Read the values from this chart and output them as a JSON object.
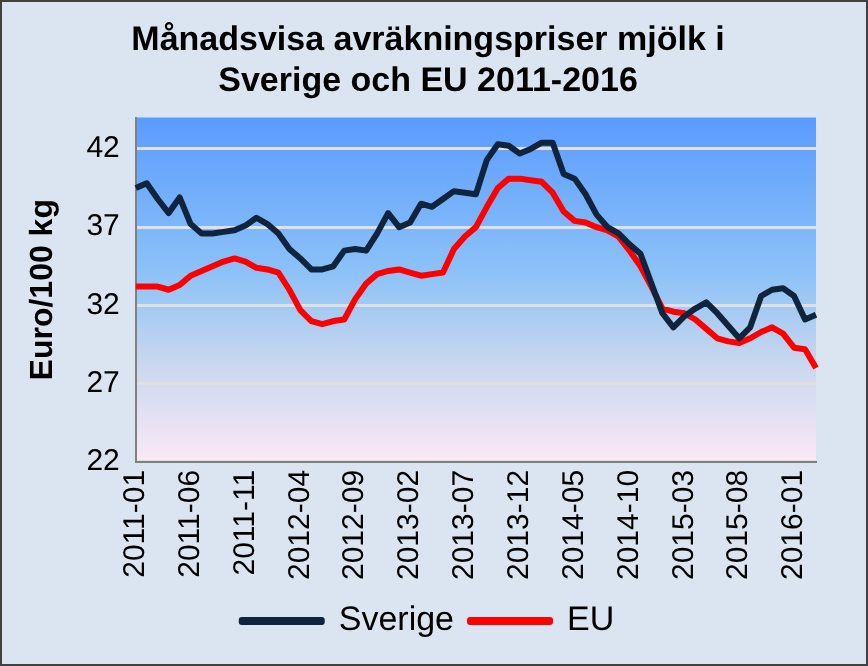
{
  "chart_data": {
    "type": "line",
    "title": "Månadsvisa avräkningspriser mjölk i Sverige och EU 2011-2016",
    "ylabel": "Euro/100 kg",
    "categories": [
      "2011-01",
      null,
      null,
      null,
      null,
      "2011-06",
      null,
      null,
      null,
      null,
      "2011-11",
      null,
      null,
      null,
      null,
      "2012-04",
      null,
      null,
      null,
      null,
      "2012-09",
      null,
      null,
      null,
      null,
      "2013-02",
      null,
      null,
      null,
      null,
      "2013-07",
      null,
      null,
      null,
      null,
      "2013-12",
      null,
      null,
      null,
      null,
      "2014-05",
      null,
      null,
      null,
      null,
      "2014-10",
      null,
      null,
      null,
      null,
      "2015-03",
      null,
      null,
      null,
      null,
      "2015-08",
      null,
      null,
      null,
      null,
      "2016-01",
      null,
      null
    ],
    "series": [
      {
        "name": "Sverige",
        "color": "#10243e",
        "values": [
          39.5,
          39.8,
          38.8,
          37.9,
          38.9,
          37.2,
          36.6,
          36.6,
          36.7,
          36.8,
          37.1,
          37.6,
          37.2,
          36.6,
          35.6,
          35.0,
          34.3,
          34.3,
          34.5,
          35.5,
          35.6,
          35.5,
          36.6,
          37.9,
          37.0,
          37.3,
          38.5,
          38.3,
          38.8,
          39.3,
          39.2,
          39.1,
          41.3,
          42.3,
          42.2,
          41.7,
          42.0,
          42.4,
          42.4,
          40.4,
          40.1,
          39.1,
          37.8,
          37.0,
          36.6,
          35.9,
          35.3,
          33.4,
          31.5,
          30.6,
          31.3,
          31.8,
          32.2,
          31.5,
          30.7,
          29.9,
          30.6,
          32.6,
          33.0,
          33.1,
          32.6,
          31.1,
          31.4
        ]
      },
      {
        "name": "EU",
        "color": "#ff0000",
        "values": [
          33.2,
          33.2,
          33.2,
          33.0,
          33.3,
          33.9,
          34.2,
          34.5,
          34.8,
          35.0,
          34.8,
          34.4,
          34.3,
          34.1,
          33.0,
          31.7,
          31.0,
          30.8,
          31.0,
          31.1,
          32.4,
          33.4,
          34.0,
          34.2,
          34.3,
          34.1,
          33.9,
          34.0,
          34.1,
          35.6,
          36.4,
          37.0,
          38.3,
          39.5,
          40.1,
          40.1,
          40.0,
          39.9,
          39.2,
          38.0,
          37.4,
          37.3,
          37.0,
          36.8,
          36.4,
          35.5,
          34.5,
          33.2,
          31.8,
          31.6,
          31.5,
          31.1,
          30.5,
          29.9,
          29.7,
          29.6,
          29.9,
          30.3,
          30.6,
          30.2,
          29.3,
          29.2,
          28.0
        ]
      }
    ],
    "ylim": [
      22,
      44
    ],
    "yticks": [
      22,
      27,
      32,
      37,
      42
    ],
    "grid": "y",
    "legend": "bottom",
    "marker": "none",
    "line_style": "solid"
  }
}
